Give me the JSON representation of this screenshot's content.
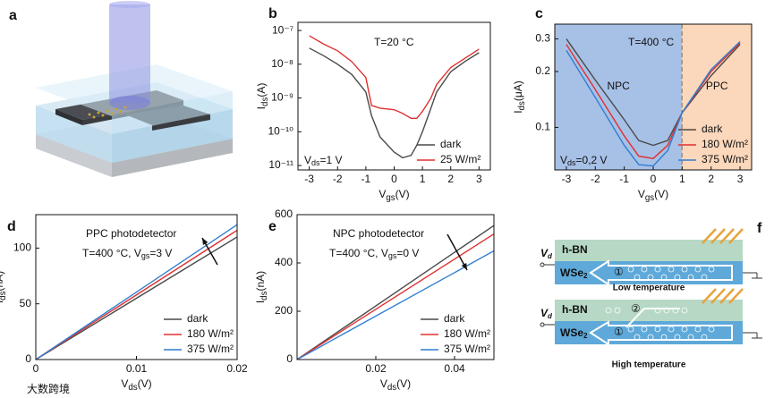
{
  "illustration": {
    "panel_label": "a"
  },
  "chart_data": [
    {
      "type": "line",
      "panel_label": "b",
      "log_y": true,
      "xlabel": [
        "V",
        "gs",
        "(V)"
      ],
      "ylabel": [
        "I",
        "ds",
        "(A)"
      ],
      "annotations": [
        [
          "T=20 °C"
        ],
        [
          "V",
          "ds",
          "=1 V"
        ]
      ],
      "xlim": [
        -3.4,
        3.4
      ],
      "xticks": [
        -3,
        -2,
        -1,
        0,
        1,
        2,
        3
      ],
      "ylim": [
        7.4e-12,
        1.74e-07
      ],
      "yticks": [
        {
          "value": 1e-11,
          "label": "10⁻¹¹"
        },
        {
          "value": 1e-10,
          "label": "10⁻¹⁰"
        },
        {
          "value": 1e-09,
          "label": "10⁻⁹"
        },
        {
          "value": 1e-08,
          "label": "10⁻⁸"
        },
        {
          "value": 1e-07,
          "label": "10⁻⁷"
        }
      ],
      "legend": "lower right",
      "x": [
        -3,
        -2.5,
        -2,
        -1.5,
        -1,
        -0.8,
        -0.5,
        0,
        0.3,
        0.6,
        0.8,
        1,
        1.3,
        1.5,
        2,
        2.5,
        3
      ],
      "series": [
        {
          "name": "dark",
          "color": "#4a4a4a",
          "values": [
            3e-08,
            1.8e-08,
            1e-08,
            5e-09,
            1.5e-09,
            3e-10,
            7e-11,
            2.5e-11,
            1.7e-11,
            2e-11,
            4e-11,
            1e-10,
            5e-10,
            1.5e-09,
            6e-09,
            1.2e-08,
            2.2e-08
          ]
        },
        {
          "name": "25 W/m²",
          "color": "#e03030",
          "values": [
            7e-08,
            4e-08,
            2.5e-08,
            1.2e-08,
            4e-09,
            6e-10,
            5e-10,
            4.5e-10,
            3.5e-10,
            2.5e-10,
            2.5e-10,
            4e-10,
            1e-09,
            2.5e-09,
            8e-09,
            1.5e-08,
            2.8e-08
          ]
        }
      ]
    },
    {
      "type": "line",
      "panel_label": "c",
      "log_y": true,
      "xlabel": [
        "V",
        "gs",
        "(V)"
      ],
      "ylabel": [
        "I",
        "ds",
        "(μA)"
      ],
      "annotations": [
        [
          "T=400 °C"
        ],
        [
          "V",
          "ds",
          "=0,2 V"
        ]
      ],
      "regions": [
        {
          "label": "NPC",
          "from": -3.4,
          "to": 1,
          "color": "#a7c0e6"
        },
        {
          "label": "PPC",
          "from": 1,
          "to": 3.4,
          "color": "#fbd7bb"
        }
      ],
      "xlim": [
        -3.4,
        3.4
      ],
      "xticks": [
        -3,
        -2,
        -1,
        0,
        1,
        2,
        3
      ],
      "ylim": [
        0.059,
        0.36
      ],
      "yticks": [
        0.1,
        0.2,
        0.3
      ],
      "legend": "lower right",
      "x": [
        -3,
        -2,
        -1,
        -0.5,
        0,
        0.5,
        1,
        2,
        3
      ],
      "series": [
        {
          "name": "dark",
          "color": "#4a4a4a",
          "values": [
            0.3,
            0.18,
            0.11,
            0.085,
            0.08,
            0.085,
            0.12,
            0.19,
            0.28
          ]
        },
        {
          "name": "180 W/m²",
          "color": "#e03030",
          "values": [
            0.28,
            0.16,
            0.09,
            0.07,
            0.068,
            0.08,
            0.12,
            0.2,
            0.285
          ]
        },
        {
          "name": "375 W/m²",
          "color": "#2f7fd0",
          "values": [
            0.26,
            0.145,
            0.08,
            0.063,
            0.062,
            0.075,
            0.12,
            0.205,
            0.29
          ]
        }
      ]
    },
    {
      "type": "line",
      "panel_label": "d",
      "log_y": false,
      "xlabel": [
        "V",
        "ds",
        "(V)"
      ],
      "ylabel": [
        "I",
        "ds",
        "(nA)"
      ],
      "annotations": [
        [
          "PPC photodetector"
        ],
        [
          "T=400 °C, V",
          "gs",
          "=3 V"
        ]
      ],
      "xlim": [
        0,
        0.02
      ],
      "xticks": [
        0,
        0.01,
        0.02
      ],
      "ylim": [
        0,
        130
      ],
      "yticks": [
        0,
        50,
        100
      ],
      "legend": "lower right",
      "x": [
        0,
        0.02
      ],
      "series": [
        {
          "name": "dark",
          "color": "#4a4a4a",
          "values": [
            0,
            110
          ]
        },
        {
          "name": "180 W/m²",
          "color": "#e03030",
          "values": [
            0,
            116
          ]
        },
        {
          "name": "375 W/m²",
          "color": "#2f7fd0",
          "values": [
            0,
            121
          ]
        }
      ]
    },
    {
      "type": "line",
      "panel_label": "e",
      "log_y": false,
      "xlabel": [
        "V",
        "ds",
        "(V)"
      ],
      "ylabel": [
        "I",
        "ds",
        "(nA)"
      ],
      "annotations": [
        [
          "NPC photodetector"
        ],
        [
          "T=400 °C, V",
          "gs",
          "=0 V"
        ]
      ],
      "xlim": [
        0,
        0.05
      ],
      "xticks": [
        0.02,
        0.04
      ],
      "ylim": [
        0,
        600
      ],
      "yticks": [
        0,
        200,
        400,
        600
      ],
      "legend": "lower right",
      "x": [
        0,
        0.05
      ],
      "series": [
        {
          "name": "dark",
          "color": "#4a4a4a",
          "values": [
            0,
            555
          ]
        },
        {
          "name": "180 W/m²",
          "color": "#e03030",
          "values": [
            0,
            520
          ]
        },
        {
          "name": "375 W/m²",
          "color": "#2f7fd0",
          "values": [
            0,
            450
          ]
        }
      ]
    }
  ],
  "diagram": {
    "panel_label": "f",
    "blocks": [
      {
        "top_layer": "h-BN",
        "bottom_layer": [
          "WSe",
          "2"
        ],
        "voltage": [
          "V",
          "d"
        ],
        "channels": [
          "①"
        ],
        "caption": "Low temperature"
      },
      {
        "top_layer": "h-BN",
        "bottom_layer": [
          "WSe",
          "2"
        ],
        "voltage": [
          "V",
          "d"
        ],
        "channels": [
          "①",
          "②"
        ],
        "caption": "High temperature"
      }
    ]
  },
  "watermark": "大数跨境"
}
